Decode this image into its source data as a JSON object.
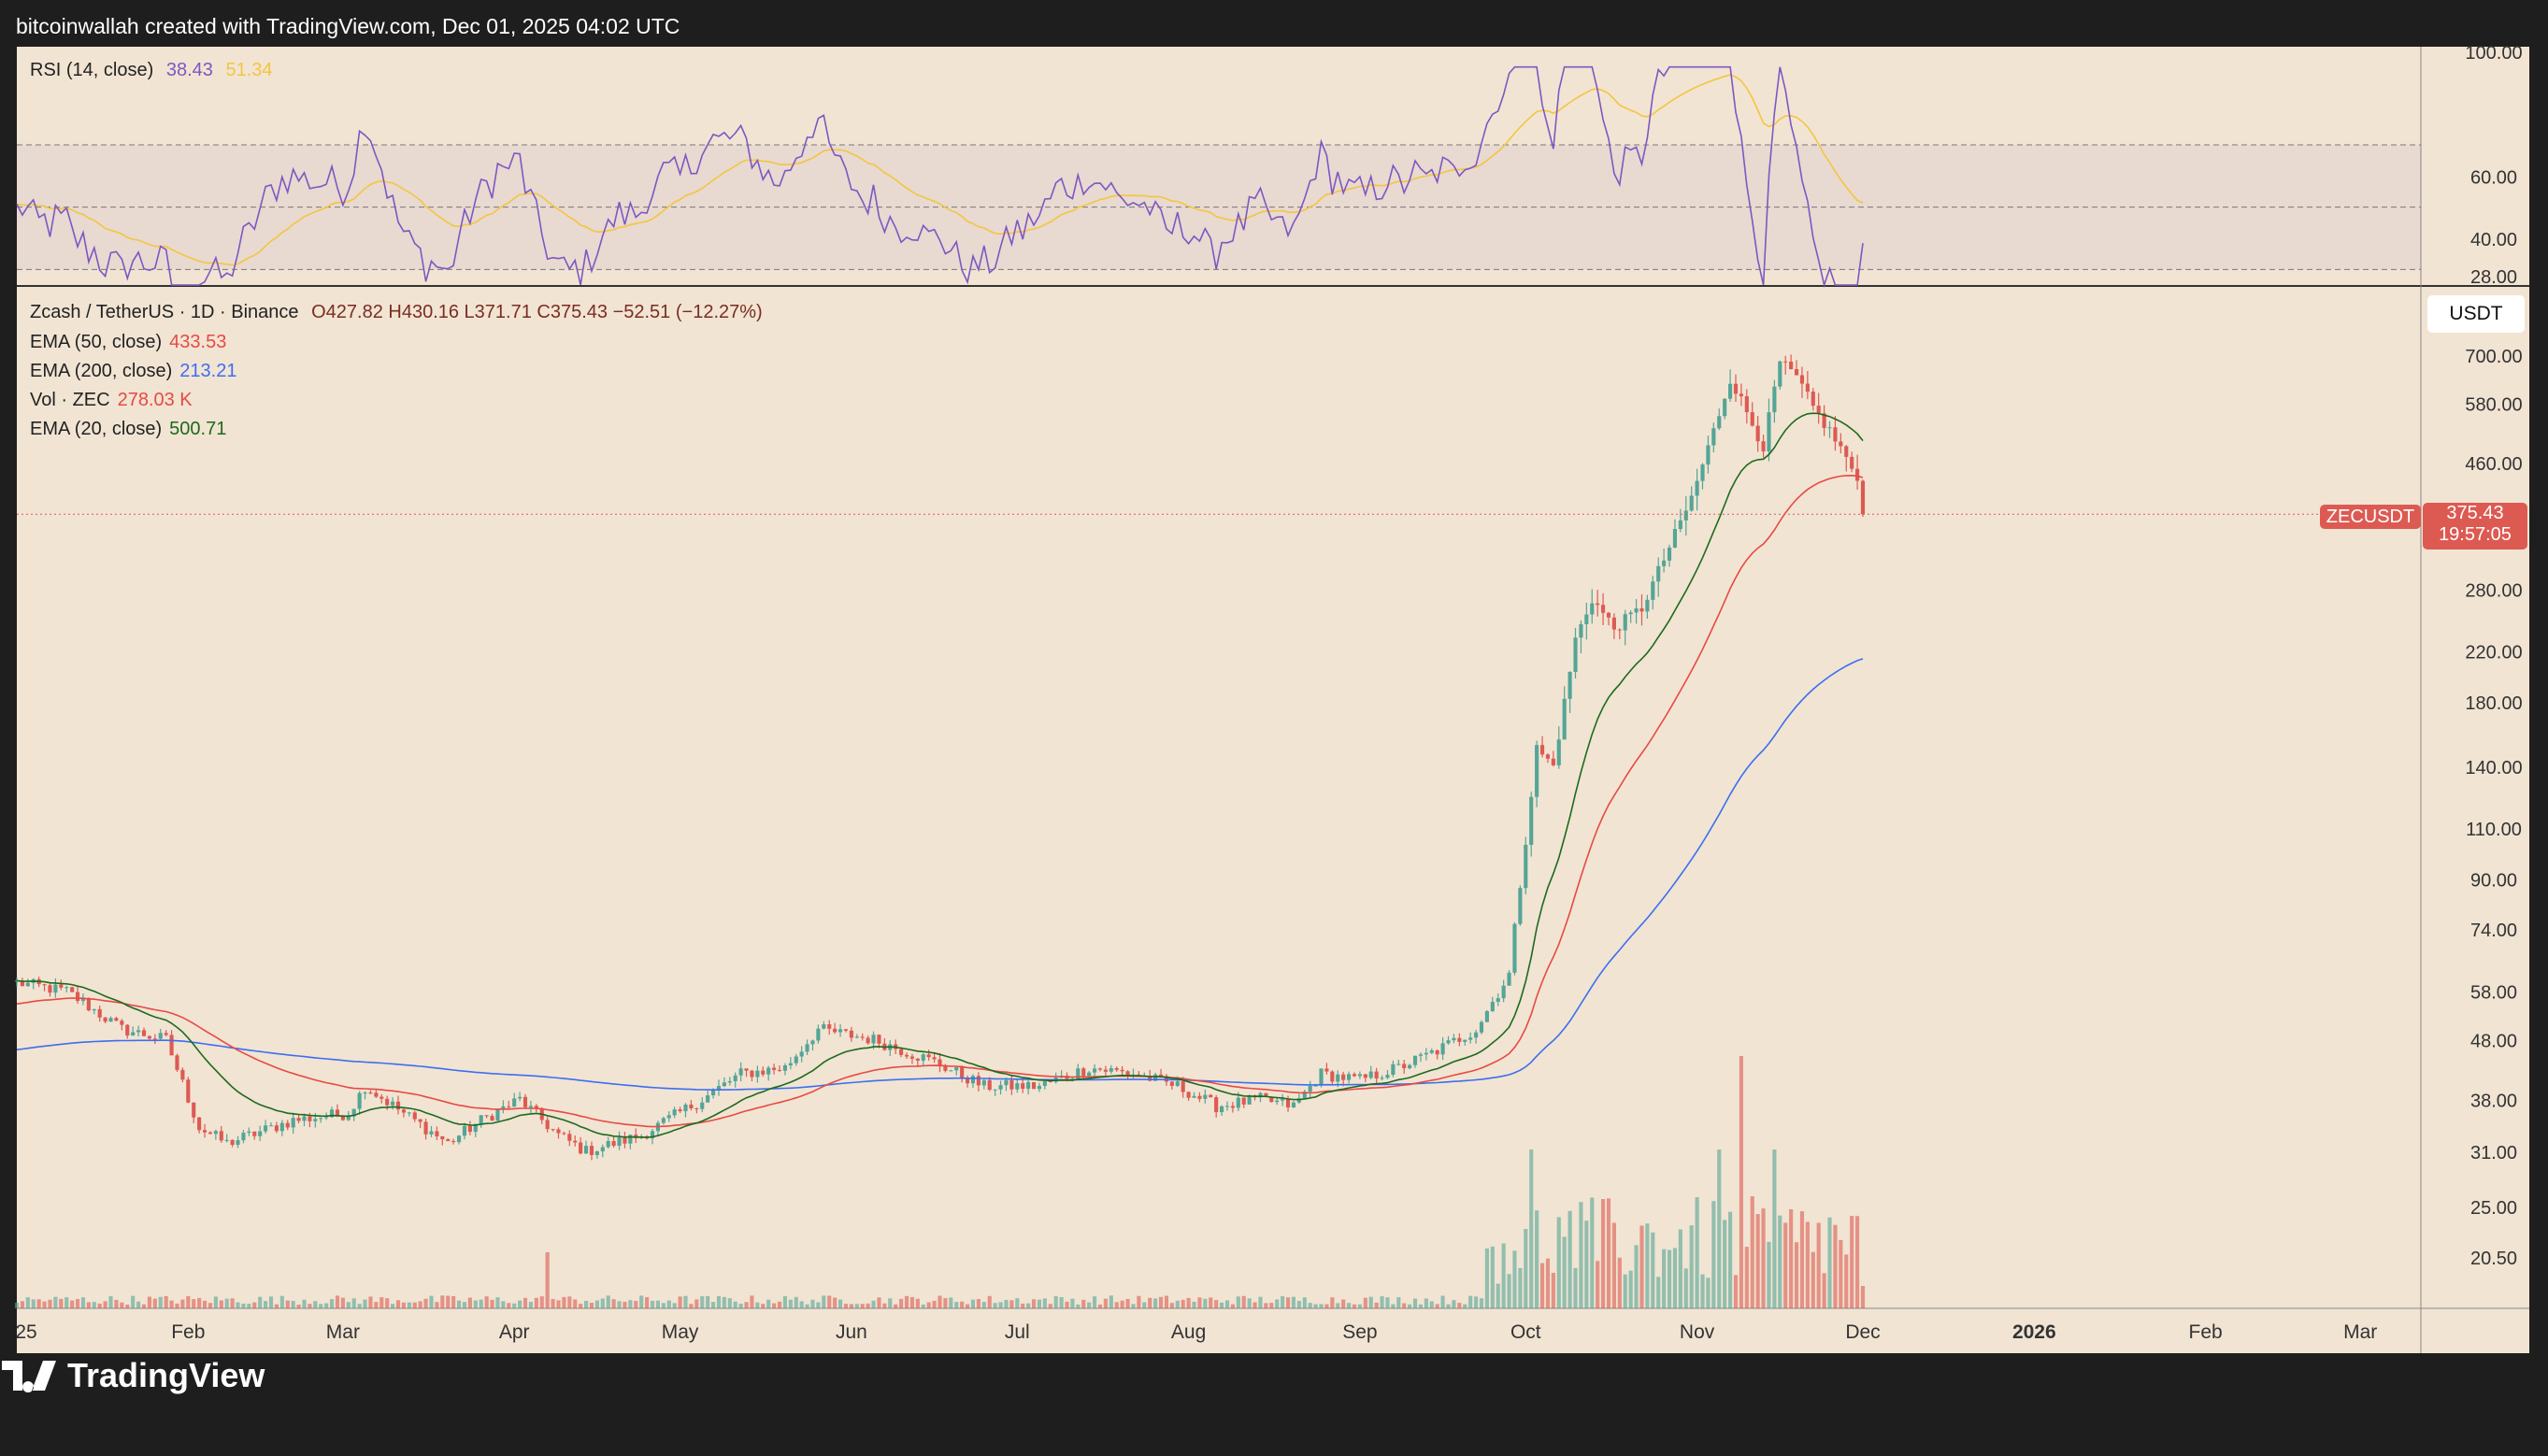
{
  "header": {
    "text": "bitcoinwallah created with TradingView.com, Dec 01, 2025 04:02 UTC"
  },
  "footer": {
    "brand": "TradingView"
  },
  "colors": {
    "background": "#f1e4d3",
    "up": "#54a596",
    "down": "#dd5a52",
    "ema50": "#e74a44",
    "ema200": "#3d6ef0",
    "ema20": "#1d6a1e",
    "rsi": "#7e57c2",
    "rsi_ma": "#f3c63f",
    "price_tag": "#dd5a52"
  },
  "rsi_legend": {
    "label": "RSI (14, close)",
    "value": "38.43",
    "ma_value": "51.34"
  },
  "rsi_axis": [
    "100.00",
    "60.00",
    "40.00",
    "28.00"
  ],
  "price_legend": {
    "symbol": "Zcash / TetherUS · 1D · Binance",
    "ohlc": "O427.82 H430.16 L371.71 C375.43 −52.51 (−12.27%)"
  },
  "indicators": [
    {
      "label": "EMA (50, close)",
      "value": "433.53",
      "color": "#e74a44"
    },
    {
      "label": "EMA (200, close)",
      "value": "213.21",
      "color": "#3d6ef0"
    },
    {
      "label": "Vol · ZEC",
      "value": "278.03 K",
      "color": "#e74a44"
    },
    {
      "label": "EMA (20, close)",
      "value": "500.71",
      "color": "#1d6a1e"
    }
  ],
  "currency_button": "USDT",
  "price_tag": {
    "symbol": "ZECUSDT",
    "price": "375.43",
    "countdown": "19:57:05"
  },
  "chart_data": {
    "type": "candlestick",
    "symbol": "ZECUSDT",
    "timeframe": "1D",
    "exchange": "Binance",
    "x_ticks": [
      "25",
      "Feb",
      "Mar",
      "Apr",
      "May",
      "Jun",
      "Jul",
      "Aug",
      "Sep",
      "Oct",
      "Nov",
      "Dec",
      "2026",
      "Feb",
      "Mar"
    ],
    "y_ticks": [
      "700.00",
      "580.00",
      "460.00",
      "280.00",
      "220.00",
      "180.00",
      "140.00",
      "110.00",
      "90.00",
      "74.00",
      "58.00",
      "48.00",
      "38.00",
      "31.00",
      "25.00",
      "20.50"
    ],
    "y_scale": "log",
    "last": {
      "open": 427.82,
      "high": 430.16,
      "low": 371.71,
      "close": 375.43
    },
    "close_path": [
      [
        "2025-01-01",
        60
      ],
      [
        "2025-01-10",
        58
      ],
      [
        "2025-01-20",
        50
      ],
      [
        "2025-01-28",
        48
      ],
      [
        "2025-02-03",
        34
      ],
      [
        "2025-02-08",
        32
      ],
      [
        "2025-02-20",
        35
      ],
      [
        "2025-03-02",
        36
      ],
      [
        "2025-03-05",
        40
      ],
      [
        "2025-03-12",
        36
      ],
      [
        "2025-03-20",
        32
      ],
      [
        "2025-03-26",
        35
      ],
      [
        "2025-04-02",
        38
      ],
      [
        "2025-04-09",
        33
      ],
      [
        "2025-04-14",
        31
      ],
      [
        "2025-04-24",
        33
      ],
      [
        "2025-05-05",
        38
      ],
      [
        "2025-05-12",
        42
      ],
      [
        "2025-05-20",
        43
      ],
      [
        "2025-05-26",
        50
      ],
      [
        "2025-06-05",
        48
      ],
      [
        "2025-06-16",
        44
      ],
      [
        "2025-06-25",
        40
      ],
      [
        "2025-07-05",
        40
      ],
      [
        "2025-07-14",
        43
      ],
      [
        "2025-07-22",
        42
      ],
      [
        "2025-07-30",
        40
      ],
      [
        "2025-08-06",
        37
      ],
      [
        "2025-08-14",
        38
      ],
      [
        "2025-08-20",
        37
      ],
      [
        "2025-08-25",
        42
      ],
      [
        "2025-09-01",
        41
      ],
      [
        "2025-09-08",
        43
      ],
      [
        "2025-09-15",
        46
      ],
      [
        "2025-09-22",
        50
      ],
      [
        "2025-09-28",
        62
      ],
      [
        "2025-10-03",
        150
      ],
      [
        "2025-10-06",
        140
      ],
      [
        "2025-10-10",
        230
      ],
      [
        "2025-10-13",
        270
      ],
      [
        "2025-10-17",
        240
      ],
      [
        "2025-10-22",
        260
      ],
      [
        "2025-10-27",
        330
      ],
      [
        "2025-10-31",
        400
      ],
      [
        "2025-11-04",
        520
      ],
      [
        "2025-11-07",
        640
      ],
      [
        "2025-11-10",
        560
      ],
      [
        "2025-11-13",
        490
      ],
      [
        "2025-11-16",
        680
      ],
      [
        "2025-11-19",
        640
      ],
      [
        "2025-11-22",
        570
      ],
      [
        "2025-11-25",
        520
      ],
      [
        "2025-11-28",
        470
      ],
      [
        "2025-11-30",
        428
      ],
      [
        "2025-12-01",
        375.43
      ]
    ],
    "volume_spikes": [
      {
        "date": "2025-04-07",
        "color": "down"
      },
      {
        "date": "2025-11-09",
        "color": "down"
      },
      {
        "date": "2025-10-02",
        "color": "up"
      },
      {
        "date": "2025-11-05",
        "color": "up"
      },
      {
        "date": "2025-11-15",
        "color": "up"
      }
    ],
    "ema_last": {
      "ema20": 500.71,
      "ema50": 433.53,
      "ema200": 213.21
    },
    "rsi_last": {
      "rsi": 38.43,
      "rsi_ma": 51.34
    },
    "rsi_levels": [
      70,
      50,
      30
    ],
    "volume_last": "278.03 K"
  }
}
